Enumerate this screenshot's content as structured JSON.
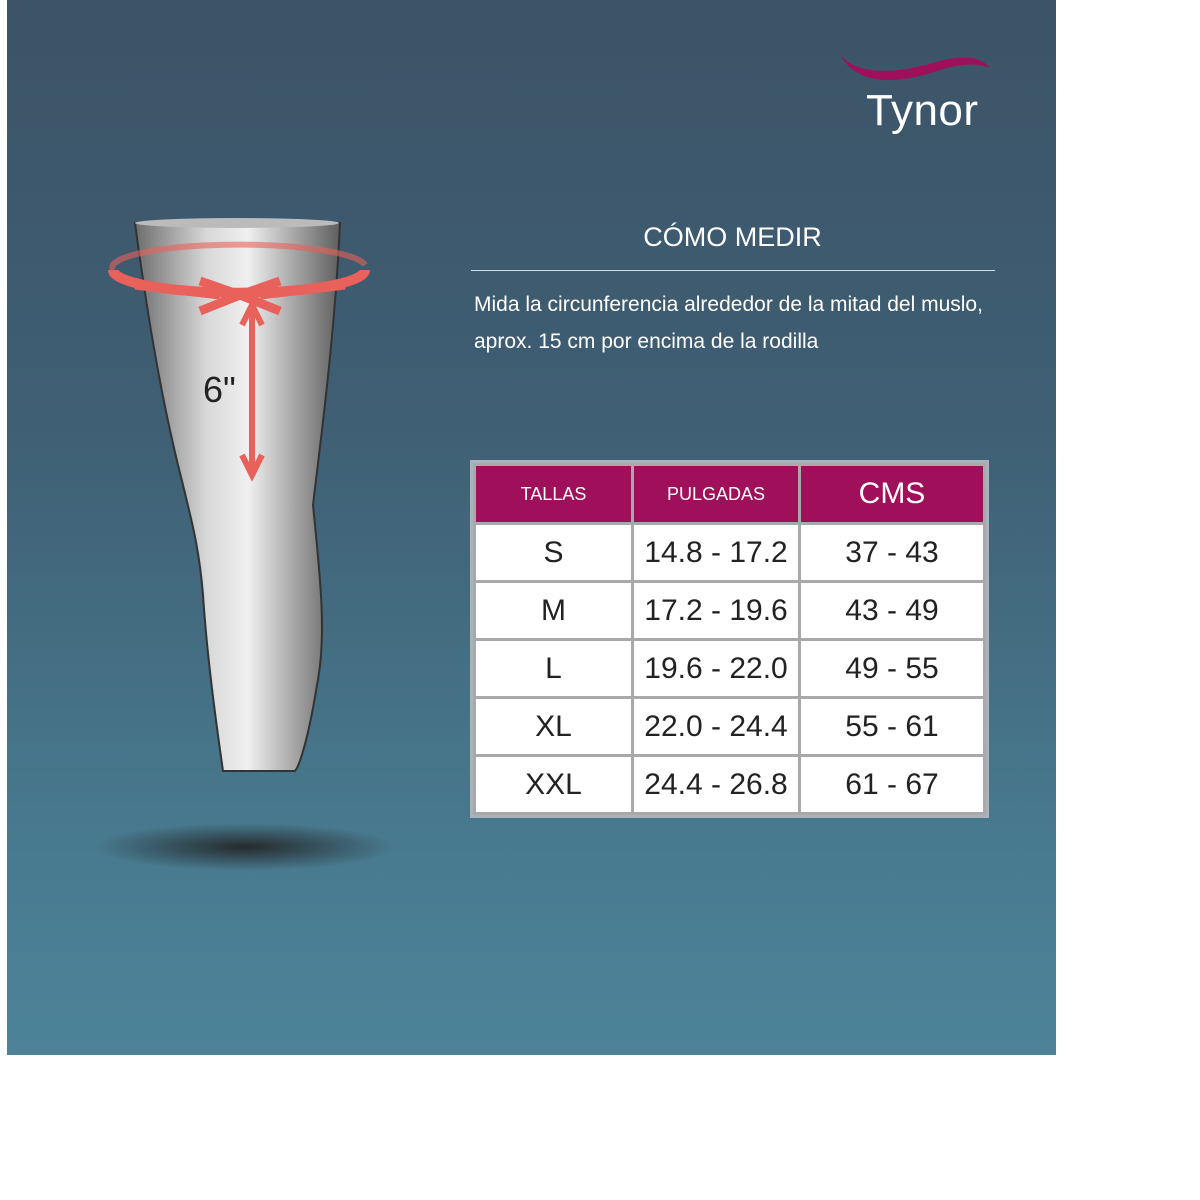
{
  "brand": {
    "name": "Tynor",
    "accent": "#a0105a"
  },
  "how_to_measure": {
    "title": "CÓMO MEDIR",
    "description": "Mida la circunferencia alrededor de la mitad del muslo, aprox. 15 cm por encima de la rodilla"
  },
  "illustration": {
    "distance_label": "6\"",
    "arrow_color": "#e8615a"
  },
  "size_table": {
    "headers": [
      "TALLAS",
      "PULGADAS",
      "CMS"
    ],
    "rows": [
      [
        "S",
        "14.8 - 17.2",
        "37 - 43"
      ],
      [
        "M",
        "17.2 - 19.6",
        "43 - 49"
      ],
      [
        "L",
        "19.6 - 22.0",
        "49 - 55"
      ],
      [
        "XL",
        "22.0 - 24.4",
        "55 - 61"
      ],
      [
        "XXL",
        "24.4 - 26.8",
        "61 - 67"
      ]
    ]
  }
}
